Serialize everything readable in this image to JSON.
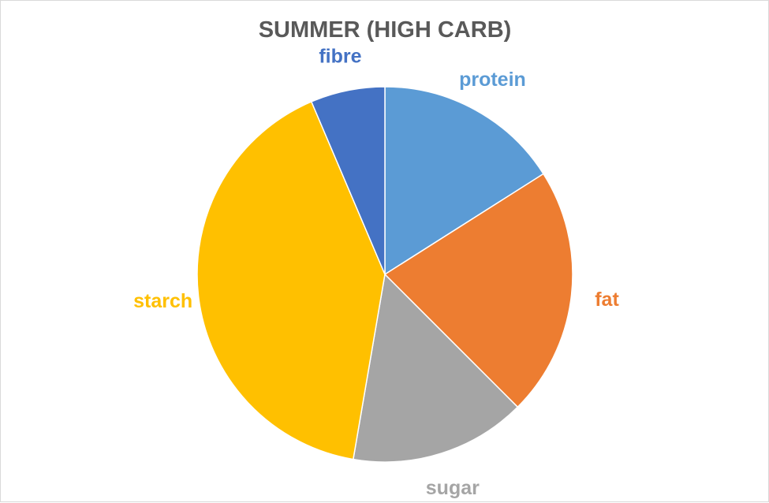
{
  "chart_data": {
    "type": "pie",
    "title": "SUMMER (HIGH CARB)",
    "start_angle_deg": 0,
    "direction": "clockwise",
    "legend": "none",
    "data_labels": "category names outside slices",
    "slices": [
      {
        "label": "protein",
        "value": 16.0,
        "color": "#5B9BD5"
      },
      {
        "label": "fat",
        "value": 21.5,
        "color": "#ED7D31"
      },
      {
        "label": "sugar",
        "value": 15.2,
        "color": "#A5A5A5"
      },
      {
        "label": "starch",
        "value": 40.9,
        "color": "#FFC000"
      },
      {
        "label": "fibre",
        "value": 6.4,
        "color": "#4472C4"
      }
    ],
    "title_color": "#595959"
  }
}
